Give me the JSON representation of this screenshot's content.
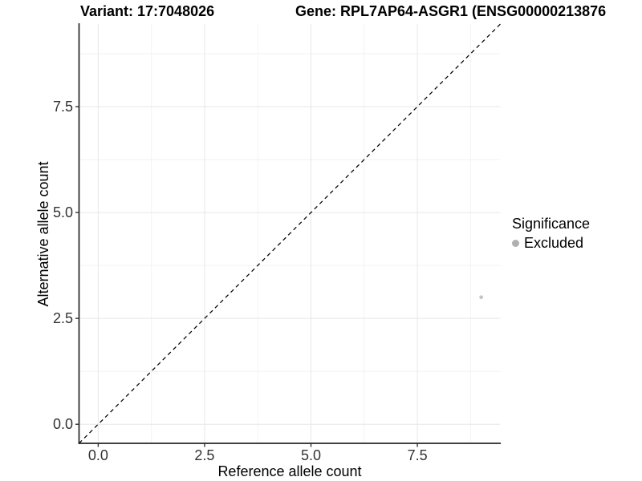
{
  "header": {
    "variant_title": "Variant: 17:7048026",
    "gene_title": "Gene: RPL7AP64-ASGR1 (ENSG00000213876"
  },
  "chart_data": {
    "type": "scatter",
    "xlabel": "Reference allele count",
    "ylabel": "Alternative allele count",
    "xlim": [
      -0.45,
      9.45
    ],
    "ylim": [
      -0.45,
      9.45
    ],
    "major_ticks": [
      0,
      2.5,
      5,
      7.5
    ],
    "x_tick_labels": [
      "0.0",
      "2.5",
      "5.0",
      "7.5"
    ],
    "y_tick_labels": [
      "0.0",
      "2.5",
      "5.0",
      "7.5"
    ],
    "minor_ticks": [
      1.25,
      3.75,
      6.25,
      8.75
    ],
    "grid": "major and minor gridlines on white background",
    "identity_line": {
      "style": "dashed",
      "color": "#000000",
      "from": [
        -0.45,
        -0.45
      ],
      "to": [
        9.45,
        9.45
      ]
    },
    "series": [
      {
        "name": "Excluded",
        "point_color": "#c6c6c6",
        "points": [
          {
            "x": 9,
            "y": 3
          }
        ]
      }
    ],
    "legend": {
      "title": "Significance",
      "position": "right",
      "items": [
        {
          "label": "Excluded",
          "swatch_color": "#b0b0b0"
        }
      ]
    }
  },
  "colors": {
    "axis_line": "#262626",
    "tick_mark": "#333333",
    "tick_label": "#333333",
    "grid_major": "#e7e7e7",
    "grid_minor": "#f2f2f2",
    "background": "#ffffff"
  }
}
